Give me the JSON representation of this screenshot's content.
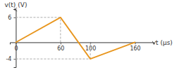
{
  "chart_data": {
    "type": "line",
    "x_label": "t (μs)",
    "y_label": "v(t) (V)",
    "xlim": [
      -8,
      185
    ],
    "ylim": [
      -6.0,
      8.0
    ],
    "xticks": [
      0,
      60,
      100,
      160
    ],
    "yticks": [
      6,
      -4
    ],
    "series": [
      {
        "color": "#E8961E",
        "x": [
          0,
          60,
          100,
          160
        ],
        "values": [
          0,
          6,
          -4,
          0
        ]
      },
      {
        "color": "#aaaaaa",
        "line_style": "dashed",
        "x": [
          0,
          60
        ],
        "values": [
          6,
          6
        ]
      },
      {
        "color": "#aaaaaa",
        "line_style": "dashed",
        "x": [
          0,
          100
        ],
        "values": [
          -4,
          -4
        ]
      },
      {
        "color": "#aaaaaa",
        "line_style": "dashed",
        "x": [
          60,
          60
        ],
        "values": [
          0,
          6
        ]
      },
      {
        "color": "#aaaaaa",
        "line_style": "dashed",
        "x": [
          100,
          100
        ],
        "values": [
          -4,
          0
        ]
      }
    ]
  }
}
